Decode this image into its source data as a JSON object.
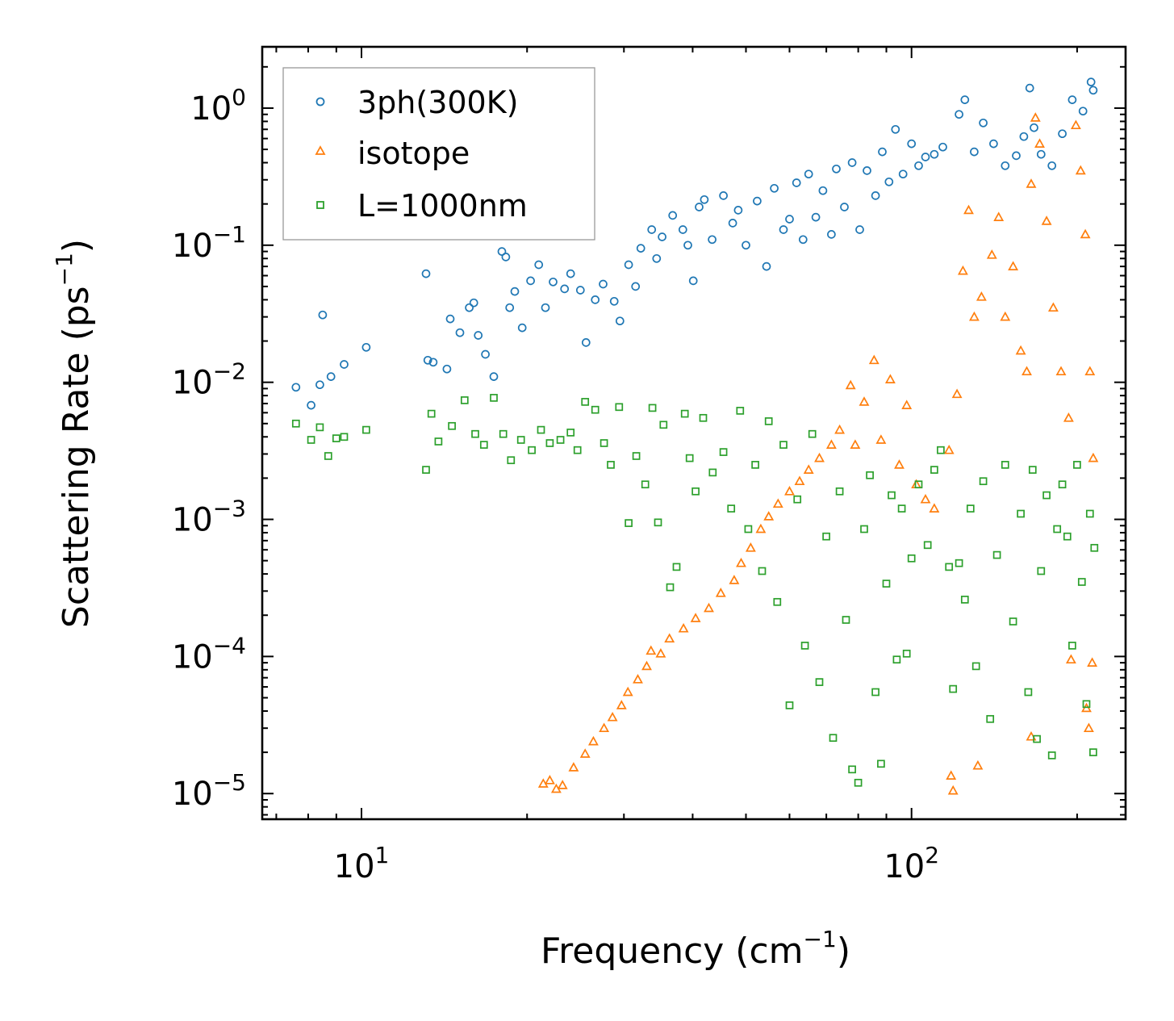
{
  "chart_data": {
    "type": "scatter",
    "x_scale": "log",
    "y_scale": "log",
    "xlim": [
      6.6,
      245
    ],
    "ylim": [
      6.5e-06,
      2.8
    ],
    "xlabel": {
      "prefix": "Frequency (cm",
      "sup": "−1",
      "suffix": ")"
    },
    "ylabel": {
      "prefix": "Scattering Rate (ps",
      "sup": "−1",
      "suffix": ")"
    },
    "x_ticks": [
      {
        "value": 10,
        "base": "10",
        "exp": "1"
      },
      {
        "value": 100,
        "base": "10",
        "exp": "2"
      }
    ],
    "y_ticks": [
      {
        "value": 1,
        "base": "10",
        "exp": "0"
      },
      {
        "value": 0.1,
        "base": "10",
        "exp": "−1"
      },
      {
        "value": 0.01,
        "base": "10",
        "exp": "−2"
      },
      {
        "value": 0.001,
        "base": "10",
        "exp": "−3"
      },
      {
        "value": 0.0001,
        "base": "10",
        "exp": "−4"
      },
      {
        "value": 1e-05,
        "base": "10",
        "exp": "−5"
      }
    ],
    "legend_position": "top-left",
    "series": [
      {
        "name": "3ph(300K)",
        "marker": "circle",
        "color": "#1f77b4",
        "points": [
          [
            7.6,
            0.0092
          ],
          [
            8.1,
            0.0068
          ],
          [
            8.4,
            0.0096
          ],
          [
            8.5,
            0.031
          ],
          [
            8.8,
            0.011
          ],
          [
            9.3,
            0.0135
          ],
          [
            10.2,
            0.018
          ],
          [
            13.1,
            0.062
          ],
          [
            13.2,
            0.0145
          ],
          [
            13.5,
            0.014
          ],
          [
            14.3,
            0.0125
          ],
          [
            14.5,
            0.029
          ],
          [
            15.1,
            0.023
          ],
          [
            15.7,
            0.035
          ],
          [
            16.0,
            0.038
          ],
          [
            16.3,
            0.022
          ],
          [
            16.8,
            0.016
          ],
          [
            17.4,
            0.011
          ],
          [
            18.0,
            0.09
          ],
          [
            18.3,
            0.082
          ],
          [
            18.6,
            0.035
          ],
          [
            19.0,
            0.046
          ],
          [
            19.6,
            0.025
          ],
          [
            20.3,
            0.055
          ],
          [
            21.0,
            0.072
          ],
          [
            21.6,
            0.035
          ],
          [
            22.3,
            0.054
          ],
          [
            23.4,
            0.048
          ],
          [
            24.0,
            0.062
          ],
          [
            25.0,
            0.047
          ],
          [
            25.6,
            0.0195
          ],
          [
            26.6,
            0.04
          ],
          [
            27.5,
            0.052
          ],
          [
            28.8,
            0.039
          ],
          [
            29.5,
            0.028
          ],
          [
            30.6,
            0.072
          ],
          [
            31.5,
            0.05
          ],
          [
            32.2,
            0.095
          ],
          [
            33.7,
            0.13
          ],
          [
            34.4,
            0.08
          ],
          [
            35.2,
            0.115
          ],
          [
            36.8,
            0.165
          ],
          [
            38.4,
            0.13
          ],
          [
            39.2,
            0.1
          ],
          [
            40.1,
            0.055
          ],
          [
            41.1,
            0.19
          ],
          [
            42.0,
            0.215
          ],
          [
            43.4,
            0.11
          ],
          [
            45.5,
            0.23
          ],
          [
            47.3,
            0.145
          ],
          [
            48.4,
            0.18
          ],
          [
            50.0,
            0.1
          ],
          [
            52.4,
            0.21
          ],
          [
            54.5,
            0.07
          ],
          [
            56.3,
            0.26
          ],
          [
            58.5,
            0.13
          ],
          [
            60.0,
            0.155
          ],
          [
            61.8,
            0.285
          ],
          [
            63.5,
            0.11
          ],
          [
            65.0,
            0.33
          ],
          [
            67.0,
            0.16
          ],
          [
            69.0,
            0.25
          ],
          [
            71.5,
            0.12
          ],
          [
            73.0,
            0.36
          ],
          [
            75.5,
            0.19
          ],
          [
            78.0,
            0.4
          ],
          [
            80.5,
            0.13
          ],
          [
            83.0,
            0.35
          ],
          [
            86.0,
            0.23
          ],
          [
            88.5,
            0.48
          ],
          [
            91.0,
            0.29
          ],
          [
            93.5,
            0.7
          ],
          [
            96.5,
            0.33
          ],
          [
            100.0,
            0.55
          ],
          [
            103.0,
            0.38
          ],
          [
            106.0,
            0.44
          ],
          [
            110.0,
            0.46
          ],
          [
            114.0,
            0.52
          ],
          [
            122.0,
            0.9
          ],
          [
            125.0,
            1.15
          ],
          [
            130.0,
            0.48
          ],
          [
            135.0,
            0.78
          ],
          [
            141.0,
            0.55
          ],
          [
            148.0,
            0.38
          ],
          [
            155.0,
            0.45
          ],
          [
            160.0,
            0.62
          ],
          [
            164.0,
            1.4
          ],
          [
            167.0,
            0.72
          ],
          [
            172.0,
            0.46
          ],
          [
            180.0,
            0.38
          ],
          [
            188.0,
            0.65
          ],
          [
            196.0,
            1.15
          ],
          [
            205.0,
            0.95
          ],
          [
            212.0,
            1.55
          ],
          [
            214.0,
            1.35
          ]
        ]
      },
      {
        "name": "isotope",
        "marker": "triangle",
        "color": "#ff7f0e",
        "points": [
          [
            21.4,
            1.18e-05
          ],
          [
            22.0,
            1.25e-05
          ],
          [
            22.6,
            1.08e-05
          ],
          [
            23.2,
            1.15e-05
          ],
          [
            24.3,
            1.55e-05
          ],
          [
            25.5,
            1.95e-05
          ],
          [
            26.4,
            2.4e-05
          ],
          [
            27.6,
            3e-05
          ],
          [
            28.6,
            3.6e-05
          ],
          [
            29.7,
            4.4e-05
          ],
          [
            30.5,
            5.5e-05
          ],
          [
            31.8,
            6.8e-05
          ],
          [
            33.0,
            8.5e-05
          ],
          [
            33.6,
            0.00011
          ],
          [
            35.0,
            0.000105
          ],
          [
            36.3,
            0.000135
          ],
          [
            38.5,
            0.00016
          ],
          [
            40.5,
            0.00019
          ],
          [
            42.8,
            0.000225
          ],
          [
            45.0,
            0.00029
          ],
          [
            47.6,
            0.00036
          ],
          [
            49.0,
            0.00048
          ],
          [
            51.0,
            0.00062
          ],
          [
            53.2,
            0.00085
          ],
          [
            55.0,
            0.00105
          ],
          [
            57.2,
            0.0013
          ],
          [
            60.0,
            0.0016
          ],
          [
            62.6,
            0.0019
          ],
          [
            65.0,
            0.0023
          ],
          [
            68.0,
            0.0028
          ],
          [
            71.5,
            0.0035
          ],
          [
            74.0,
            0.0045
          ],
          [
            77.5,
            0.0095
          ],
          [
            79.0,
            0.0035
          ],
          [
            82.0,
            0.0072
          ],
          [
            85.5,
            0.0145
          ],
          [
            88.0,
            0.0038
          ],
          [
            91.5,
            0.0105
          ],
          [
            95.0,
            0.0025
          ],
          [
            98.0,
            0.0068
          ],
          [
            102.0,
            0.0018
          ],
          [
            106.0,
            0.0014
          ],
          [
            110.0,
            0.0012
          ],
          [
            117.0,
            0.0032
          ],
          [
            121.0,
            0.0082
          ],
          [
            124.0,
            0.065
          ],
          [
            127.0,
            0.18
          ],
          [
            130.0,
            0.03
          ],
          [
            134.0,
            0.042
          ],
          [
            140.0,
            0.085
          ],
          [
            144.0,
            0.16
          ],
          [
            148.0,
            0.03
          ],
          [
            153.0,
            0.07
          ],
          [
            158.0,
            0.017
          ],
          [
            162.0,
            0.012
          ],
          [
            165.0,
            0.28
          ],
          [
            168.0,
            0.85
          ],
          [
            171.0,
            0.55
          ],
          [
            176.0,
            0.15
          ],
          [
            181.0,
            0.035
          ],
          [
            187.0,
            0.012
          ],
          [
            193.0,
            0.0055
          ],
          [
            199.0,
            0.75
          ],
          [
            203.0,
            0.35
          ],
          [
            207.0,
            0.12
          ],
          [
            211.0,
            0.012
          ],
          [
            214.0,
            0.0028
          ],
          [
            118.0,
            1.35e-05
          ],
          [
            119.0,
            1.05e-05
          ],
          [
            132.0,
            1.6e-05
          ],
          [
            165.0,
            2.6e-05
          ],
          [
            195.0,
            9.5e-05
          ],
          [
            208.0,
            4.2e-05
          ],
          [
            210.0,
            3e-05
          ],
          [
            213.0,
            9e-05
          ]
        ]
      },
      {
        "name": "L=1000nm",
        "marker": "square",
        "color": "#2ca02c",
        "points": [
          [
            7.6,
            0.005
          ],
          [
            8.1,
            0.0038
          ],
          [
            8.4,
            0.0047
          ],
          [
            8.7,
            0.0029
          ],
          [
            9.0,
            0.0039
          ],
          [
            9.3,
            0.004
          ],
          [
            10.2,
            0.0045
          ],
          [
            13.1,
            0.0023
          ],
          [
            13.4,
            0.0059
          ],
          [
            13.8,
            0.0037
          ],
          [
            14.6,
            0.0048
          ],
          [
            15.4,
            0.0074
          ],
          [
            16.1,
            0.0042
          ],
          [
            16.7,
            0.0035
          ],
          [
            17.4,
            0.0077
          ],
          [
            18.1,
            0.0042
          ],
          [
            18.7,
            0.0027
          ],
          [
            19.5,
            0.0038
          ],
          [
            20.4,
            0.0032
          ],
          [
            21.2,
            0.0045
          ],
          [
            22.0,
            0.0036
          ],
          [
            23.0,
            0.0038
          ],
          [
            24.0,
            0.0043
          ],
          [
            24.7,
            0.0032
          ],
          [
            25.5,
            0.0072
          ],
          [
            26.6,
            0.0063
          ],
          [
            27.6,
            0.0036
          ],
          [
            28.4,
            0.0025
          ],
          [
            29.4,
            0.0066
          ],
          [
            30.6,
            0.00094
          ],
          [
            31.6,
            0.0029
          ],
          [
            32.8,
            0.0018
          ],
          [
            33.8,
            0.0065
          ],
          [
            34.6,
            0.00095
          ],
          [
            35.4,
            0.0049
          ],
          [
            36.4,
            0.00032
          ],
          [
            37.4,
            0.00045
          ],
          [
            38.7,
            0.0059
          ],
          [
            39.5,
            0.0028
          ],
          [
            40.5,
            0.0016
          ],
          [
            41.8,
            0.0055
          ],
          [
            43.5,
            0.0022
          ],
          [
            45.5,
            0.0031
          ],
          [
            47.0,
            0.0012
          ],
          [
            48.8,
            0.0062
          ],
          [
            50.5,
            0.00085
          ],
          [
            52.0,
            0.0025
          ],
          [
            53.5,
            0.00042
          ],
          [
            55.0,
            0.0052
          ],
          [
            57.0,
            0.00025
          ],
          [
            58.5,
            0.0035
          ],
          [
            60.0,
            4.4e-05
          ],
          [
            62.0,
            0.0014
          ],
          [
            64.0,
            0.00012
          ],
          [
            66.0,
            0.0042
          ],
          [
            68.0,
            6.5e-05
          ],
          [
            70.0,
            0.00075
          ],
          [
            72.0,
            2.55e-05
          ],
          [
            74.0,
            0.0016
          ],
          [
            76.0,
            0.000185
          ],
          [
            78.0,
            1.5e-05
          ],
          [
            80.0,
            1.2e-05
          ],
          [
            82.0,
            0.00085
          ],
          [
            84.0,
            0.0021
          ],
          [
            86.0,
            5.5e-05
          ],
          [
            88.0,
            1.65e-05
          ],
          [
            90.0,
            0.00034
          ],
          [
            92.0,
            0.0015
          ],
          [
            94.0,
            9.5e-05
          ],
          [
            96.0,
            0.0012
          ],
          [
            98.0,
            0.000105
          ],
          [
            100.0,
            0.00052
          ],
          [
            103.0,
            0.0018
          ],
          [
            107.0,
            0.00065
          ],
          [
            110.0,
            0.0023
          ],
          [
            113.0,
            0.0032
          ],
          [
            117.0,
            0.00045
          ],
          [
            119.0,
            5.8e-05
          ],
          [
            122.0,
            0.00048
          ],
          [
            125.0,
            0.00026
          ],
          [
            128.0,
            0.0012
          ],
          [
            131.0,
            8.5e-05
          ],
          [
            135.0,
            0.0019
          ],
          [
            139.0,
            3.5e-05
          ],
          [
            143.0,
            0.00055
          ],
          [
            148.0,
            0.0025
          ],
          [
            153.0,
            0.00018
          ],
          [
            158.0,
            0.0011
          ],
          [
            163.0,
            5.5e-05
          ],
          [
            166.0,
            0.0023
          ],
          [
            169.0,
            2.5e-05
          ],
          [
            172.0,
            0.00042
          ],
          [
            176.0,
            0.0015
          ],
          [
            180.0,
            1.9e-05
          ],
          [
            184.0,
            0.00085
          ],
          [
            188.0,
            0.0018
          ],
          [
            192.0,
            0.00075
          ],
          [
            196.0,
            0.00012
          ],
          [
            200.0,
            0.0025
          ],
          [
            204.0,
            0.00035
          ],
          [
            208.0,
            4.5e-05
          ],
          [
            211.0,
            0.0011
          ],
          [
            214.0,
            2e-05
          ],
          [
            215.0,
            0.00062
          ]
        ]
      }
    ]
  }
}
